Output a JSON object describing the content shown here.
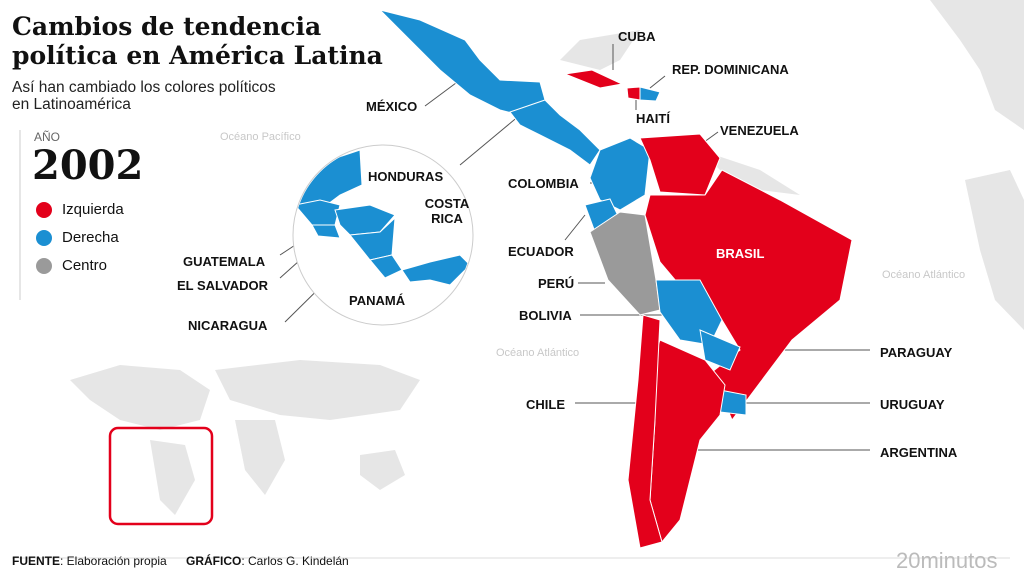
{
  "header": {
    "title_lines": [
      "Cambios de tendencia",
      "política en América Latina"
    ],
    "subtitle_lines": [
      "Así han cambiado los colores políticos",
      "en Latinoamérica"
    ]
  },
  "year_label": "AÑO",
  "year": 2002,
  "legend": [
    {
      "label": "Izquierda",
      "color": "#e3001b"
    },
    {
      "label": "Derecha",
      "color": "#1b8fd2"
    },
    {
      "label": "Centro",
      "color": "#9a9a9a"
    }
  ],
  "countries": [
    {
      "name": "MÉXICO",
      "lean": "Derecha"
    },
    {
      "name": "HONDURAS",
      "lean": "Derecha"
    },
    {
      "name": "COSTA RICA",
      "lean": "Derecha"
    },
    {
      "name": "GUATEMALA",
      "lean": "Derecha"
    },
    {
      "name": "EL SALVADOR",
      "lean": "Derecha"
    },
    {
      "name": "NICARAGUA",
      "lean": "Derecha"
    },
    {
      "name": "PANAMÁ",
      "lean": "Derecha"
    },
    {
      "name": "CUBA",
      "lean": "Izquierda"
    },
    {
      "name": "REP. DOMINICANA",
      "lean": "Derecha"
    },
    {
      "name": "HAITÍ",
      "lean": "Izquierda"
    },
    {
      "name": "VENEZUELA",
      "lean": "Izquierda"
    },
    {
      "name": "COLOMBIA",
      "lean": "Derecha"
    },
    {
      "name": "ECUADOR",
      "lean": "Derecha"
    },
    {
      "name": "PERÚ",
      "lean": "Centro"
    },
    {
      "name": "BOLIVIA",
      "lean": "Derecha"
    },
    {
      "name": "BRASIL",
      "lean": "Izquierda"
    },
    {
      "name": "PARAGUAY",
      "lean": "Derecha"
    },
    {
      "name": "URUGUAY",
      "lean": "Derecha"
    },
    {
      "name": "CHILE",
      "lean": "Izquierda"
    },
    {
      "name": "ARGENTINA",
      "lean": "Izquierda"
    }
  ],
  "oceans": [
    "Océano Pacífico",
    "Océano Atlántico",
    "Océano Atlántico"
  ],
  "footer": {
    "source_label": "FUENTE",
    "source": ": Elaboración propia",
    "credit_label": "GRÁFICO",
    "credit": ": Carlos G. Kindelán",
    "brand": "20minutos"
  }
}
